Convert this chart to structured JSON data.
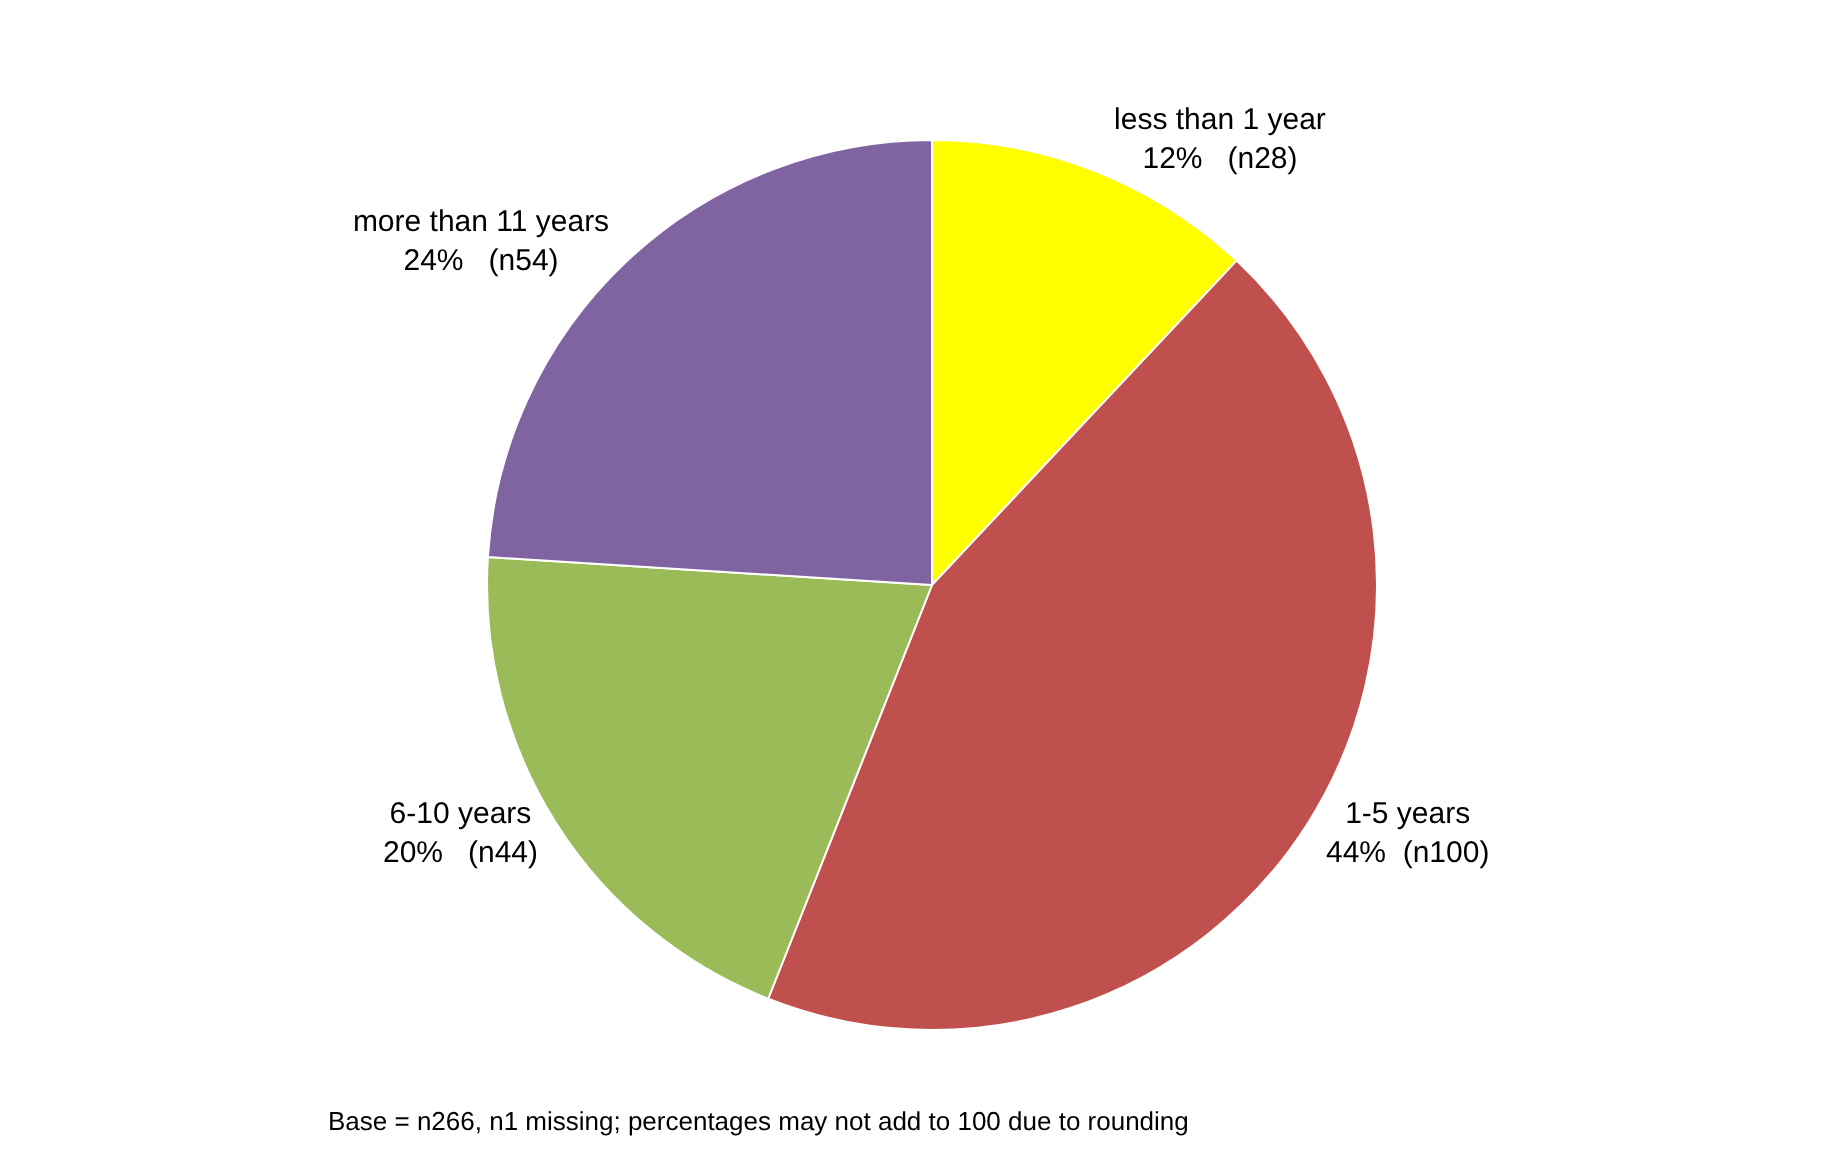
{
  "chart_data": {
    "type": "pie",
    "categories": [
      "less than 1 year",
      "1-5 years",
      "6-10 years",
      "more than 11 years"
    ],
    "values": [
      12,
      44,
      20,
      24
    ],
    "value_labels": [
      "12%   (n28)",
      "44%  (n100)",
      "20%   (n44)",
      "24%   (n54)"
    ],
    "colors": [
      "#ffff00",
      "#c0504d",
      "#9bbb59",
      "#8064a2"
    ],
    "legend": false,
    "annotations": [
      "Base = n266, n1 missing; percentages may not add to 100 due to rounding"
    ]
  }
}
